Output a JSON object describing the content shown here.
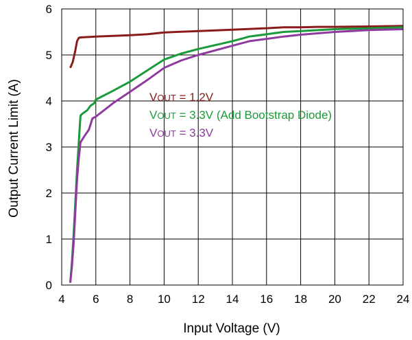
{
  "chart_data": {
    "type": "line",
    "xlabel": "Input Voltage (V)",
    "ylabel": "Output Current Limit (A)",
    "xlim": [
      4,
      24
    ],
    "ylim": [
      0,
      6
    ],
    "x_ticks": [
      "4",
      "6",
      "8",
      "10",
      "12",
      "14",
      "16",
      "18",
      "20",
      "22",
      "24"
    ],
    "y_ticks": [
      "0",
      "1",
      "2",
      "3",
      "4",
      "5",
      "6"
    ],
    "grid": true,
    "legend": [
      {
        "prefix": "V",
        "sub": "OUT",
        "text": " = 1.2V",
        "color": "#8B1A1A"
      },
      {
        "prefix": "V",
        "sub": "OUT",
        "text": " = 3.3V (Add Bootstrap Diode)",
        "color": "#1A9A3A"
      },
      {
        "prefix": "V",
        "sub": "OUT",
        "text": " = 3.3V",
        "color": "#8E3A9E"
      }
    ],
    "series": [
      {
        "color": "#8B1A1A",
        "x": [
          4.5,
          4.65,
          4.8,
          4.9,
          5.0,
          5.1,
          6,
          8,
          9,
          10,
          12,
          14,
          16,
          17,
          18,
          19,
          20,
          22,
          24
        ],
        "y": [
          4.72,
          4.85,
          5.1,
          5.3,
          5.37,
          5.38,
          5.4,
          5.43,
          5.45,
          5.49,
          5.52,
          5.55,
          5.58,
          5.6,
          5.6,
          5.61,
          5.61,
          5.62,
          5.63
        ]
      },
      {
        "color": "#1A9A3A",
        "x": [
          4.5,
          4.6,
          4.7,
          4.8,
          4.9,
          5.0,
          5.1,
          5.2,
          5.5,
          5.7,
          5.9,
          6.0,
          7,
          8,
          9,
          10,
          11,
          12,
          14,
          15,
          16,
          17,
          18,
          20,
          22,
          24
        ],
        "y": [
          0.05,
          0.5,
          1.1,
          1.8,
          2.5,
          3.1,
          3.68,
          3.72,
          3.8,
          3.9,
          3.95,
          4.03,
          4.22,
          4.42,
          4.66,
          4.9,
          5.03,
          5.13,
          5.3,
          5.4,
          5.45,
          5.5,
          5.52,
          5.56,
          5.58,
          5.6
        ]
      },
      {
        "color": "#8E3A9E",
        "x": [
          4.5,
          4.6,
          4.7,
          4.8,
          4.9,
          5.0,
          5.1,
          5.3,
          5.6,
          5.8,
          6.0,
          7,
          8,
          9,
          10,
          11,
          12,
          14,
          15,
          16,
          17,
          18,
          20,
          22,
          24
        ],
        "y": [
          0.05,
          0.4,
          0.9,
          1.6,
          2.3,
          2.75,
          3.1,
          3.22,
          3.38,
          3.62,
          3.66,
          3.95,
          4.2,
          4.45,
          4.72,
          4.88,
          5.0,
          5.2,
          5.3,
          5.35,
          5.4,
          5.44,
          5.5,
          5.54,
          5.56
        ]
      }
    ]
  }
}
